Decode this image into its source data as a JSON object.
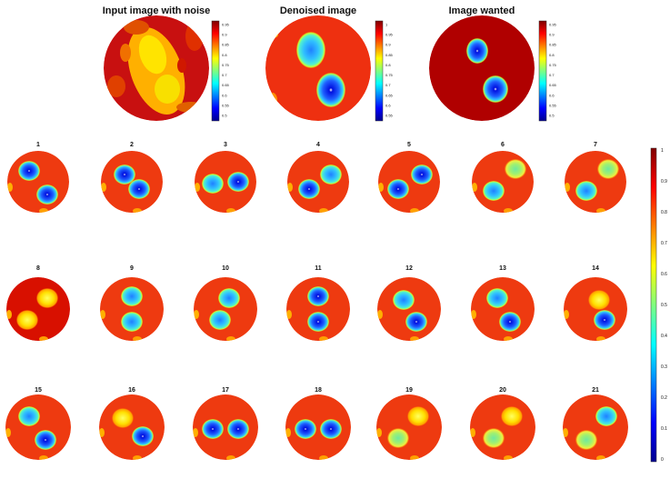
{
  "top_panels": [
    {
      "title": "Input image with noise",
      "colorbar_ticks": [
        "0.95",
        "0.9",
        "0.85",
        "0.8",
        "0.75",
        "0.7",
        "0.65",
        "0.6",
        "0.55",
        "0.5"
      ]
    },
    {
      "title": "Denoised image",
      "colorbar_ticks": [
        "1",
        "0.95",
        "0.9",
        "0.85",
        "0.8",
        "0.75",
        "0.7",
        "0.65",
        "0.6",
        "0.55"
      ]
    },
    {
      "title": "Image wanted",
      "colorbar_ticks": [
        "0.95",
        "0.9",
        "0.85",
        "0.8",
        "0.75",
        "0.7",
        "0.65",
        "0.6",
        "0.55",
        "0.5"
      ]
    }
  ],
  "grid": {
    "labels": [
      "1",
      "2",
      "3",
      "4",
      "5",
      "6",
      "7",
      "8",
      "9",
      "10",
      "11",
      "12",
      "13",
      "14",
      "15",
      "16",
      "17",
      "18",
      "19",
      "20",
      "21"
    ]
  },
  "main_colorbar": {
    "ticks": [
      "1",
      "0.9",
      "0.8",
      "0.7",
      "0.6",
      "0.5",
      "0.4",
      "0.3",
      "0.2",
      "0.1",
      "0"
    ]
  }
}
